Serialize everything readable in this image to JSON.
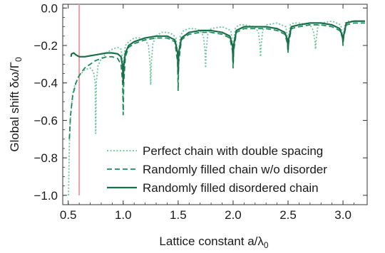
{
  "chart_data": {
    "type": "line",
    "xlabel": "Lattice constant a/λ",
    "xlabel_sub": "0",
    "ylabel": "Global shift δω/Γ",
    "ylabel_sub": "0",
    "xlim": [
      0.45,
      3.22
    ],
    "ylim": [
      -1.05,
      0.02
    ],
    "x_ticks": [
      0.5,
      1.0,
      1.5,
      2.0,
      2.5,
      3.0
    ],
    "x_tick_labels": [
      "0.5",
      "1.0",
      "1.5",
      "2.0",
      "2.5",
      "3.0"
    ],
    "y_ticks": [
      0.0,
      -0.2,
      -0.4,
      -0.6,
      -0.8,
      -1.0
    ],
    "y_tick_labels": [
      "0.0",
      "−0.2",
      "−0.4",
      "−0.6",
      "−0.8",
      "−1.0"
    ],
    "grid": false,
    "legend_position": "bottom-right",
    "marker_line": {
      "x": 0.6,
      "color": "#e8a0a8"
    },
    "series": [
      {
        "name": "Perfect chain with double spacing",
        "style": "dotted",
        "color": "#6cc49c",
        "x": [
          0.502,
          0.51,
          0.52,
          0.54,
          0.56,
          0.6,
          0.65,
          0.7,
          0.73,
          0.745,
          0.75,
          0.755,
          0.77,
          0.8,
          0.85,
          0.9,
          0.95,
          0.98,
          0.995,
          1.0,
          1.005,
          1.02,
          1.05,
          1.1,
          1.15,
          1.2,
          1.23,
          1.245,
          1.25,
          1.255,
          1.27,
          1.3,
          1.35,
          1.4,
          1.45,
          1.48,
          1.495,
          1.5,
          1.505,
          1.52,
          1.55,
          1.6,
          1.65,
          1.7,
          1.73,
          1.745,
          1.75,
          1.755,
          1.77,
          1.8,
          1.9,
          1.98,
          1.995,
          2.0,
          2.005,
          2.02,
          2.05,
          2.1,
          2.2,
          2.23,
          2.245,
          2.25,
          2.255,
          2.27,
          2.3,
          2.4,
          2.48,
          2.495,
          2.5,
          2.505,
          2.52,
          2.55,
          2.6,
          2.7,
          2.73,
          2.745,
          2.75,
          2.755,
          2.77,
          2.8,
          2.9,
          2.98,
          2.995,
          3.0,
          3.005,
          3.02,
          3.05,
          3.1,
          3.2
        ],
        "values": [
          -1.0,
          -0.74,
          -0.58,
          -0.46,
          -0.41,
          -0.36,
          -0.33,
          -0.32,
          -0.34,
          -0.4,
          -0.67,
          -0.4,
          -0.31,
          -0.27,
          -0.24,
          -0.22,
          -0.21,
          -0.22,
          -0.28,
          -0.48,
          -0.28,
          -0.2,
          -0.18,
          -0.16,
          -0.16,
          -0.17,
          -0.2,
          -0.3,
          -0.41,
          -0.3,
          -0.19,
          -0.15,
          -0.13,
          -0.13,
          -0.14,
          -0.16,
          -0.24,
          -0.37,
          -0.24,
          -0.15,
          -0.12,
          -0.11,
          -0.11,
          -0.12,
          -0.15,
          -0.23,
          -0.32,
          -0.23,
          -0.14,
          -0.11,
          -0.1,
          -0.12,
          -0.19,
          -0.28,
          -0.19,
          -0.11,
          -0.09,
          -0.09,
          -0.1,
          -0.13,
          -0.2,
          -0.26,
          -0.2,
          -0.12,
          -0.09,
          -0.08,
          -0.1,
          -0.16,
          -0.23,
          -0.16,
          -0.09,
          -0.08,
          -0.08,
          -0.09,
          -0.12,
          -0.18,
          -0.22,
          -0.18,
          -0.1,
          -0.08,
          -0.07,
          -0.09,
          -0.14,
          -0.19,
          -0.14,
          -0.08,
          -0.07,
          -0.07,
          -0.07
        ]
      },
      {
        "name": "Randomly filled chain w/o disorder",
        "style": "dashed",
        "color": "#1f8a5c",
        "x": [
          0.51,
          0.52,
          0.54,
          0.57,
          0.6,
          0.65,
          0.7,
          0.75,
          0.8,
          0.85,
          0.9,
          0.95,
          0.98,
          0.995,
          1.0,
          1.005,
          1.02,
          1.05,
          1.1,
          1.2,
          1.3,
          1.4,
          1.47,
          1.495,
          1.5,
          1.505,
          1.53,
          1.6,
          1.7,
          1.8,
          1.9,
          1.97,
          1.995,
          2.0,
          2.005,
          2.03,
          2.1,
          2.2,
          2.3,
          2.4,
          2.47,
          2.495,
          2.5,
          2.505,
          2.53,
          2.6,
          2.7,
          2.8,
          2.9,
          2.97,
          2.995,
          3.0,
          3.005,
          3.03,
          3.1,
          3.2
        ],
        "values": [
          -0.7,
          -0.58,
          -0.47,
          -0.4,
          -0.36,
          -0.32,
          -0.3,
          -0.28,
          -0.27,
          -0.26,
          -0.26,
          -0.27,
          -0.3,
          -0.4,
          -0.57,
          -0.4,
          -0.26,
          -0.21,
          -0.19,
          -0.17,
          -0.16,
          -0.16,
          -0.18,
          -0.29,
          -0.44,
          -0.29,
          -0.17,
          -0.14,
          -0.13,
          -0.13,
          -0.14,
          -0.16,
          -0.23,
          -0.32,
          -0.23,
          -0.13,
          -0.11,
          -0.11,
          -0.11,
          -0.12,
          -0.14,
          -0.19,
          -0.24,
          -0.19,
          -0.11,
          -0.1,
          -0.09,
          -0.09,
          -0.1,
          -0.12,
          -0.16,
          -0.2,
          -0.16,
          -0.09,
          -0.08,
          -0.08
        ]
      },
      {
        "name": "Randomly filled disordered chain",
        "style": "solid",
        "color": "#1b6e4a",
        "x": [
          0.525,
          0.53,
          0.55,
          0.57,
          0.6,
          0.65,
          0.7,
          0.75,
          0.8,
          0.85,
          0.9,
          0.95,
          0.98,
          0.995,
          1.0,
          1.005,
          1.02,
          1.05,
          1.1,
          1.2,
          1.3,
          1.4,
          1.47,
          1.495,
          1.5,
          1.505,
          1.53,
          1.6,
          1.7,
          1.8,
          1.9,
          1.97,
          1.995,
          2.0,
          2.005,
          2.03,
          2.1,
          2.2,
          2.3,
          2.4,
          2.47,
          2.495,
          2.5,
          2.505,
          2.53,
          2.6,
          2.7,
          2.8,
          2.9,
          2.97,
          2.995,
          3.0,
          3.005,
          3.03,
          3.1,
          3.2
        ],
        "values": [
          -0.26,
          -0.245,
          -0.24,
          -0.25,
          -0.26,
          -0.26,
          -0.255,
          -0.25,
          -0.245,
          -0.24,
          -0.24,
          -0.245,
          -0.26,
          -0.31,
          -0.4,
          -0.31,
          -0.24,
          -0.2,
          -0.18,
          -0.16,
          -0.15,
          -0.15,
          -0.17,
          -0.24,
          -0.35,
          -0.24,
          -0.16,
          -0.13,
          -0.12,
          -0.12,
          -0.13,
          -0.15,
          -0.2,
          -0.29,
          -0.2,
          -0.12,
          -0.1,
          -0.1,
          -0.1,
          -0.11,
          -0.13,
          -0.17,
          -0.22,
          -0.17,
          -0.1,
          -0.09,
          -0.08,
          -0.08,
          -0.09,
          -0.11,
          -0.15,
          -0.18,
          -0.15,
          -0.08,
          -0.07,
          -0.07
        ]
      }
    ]
  }
}
